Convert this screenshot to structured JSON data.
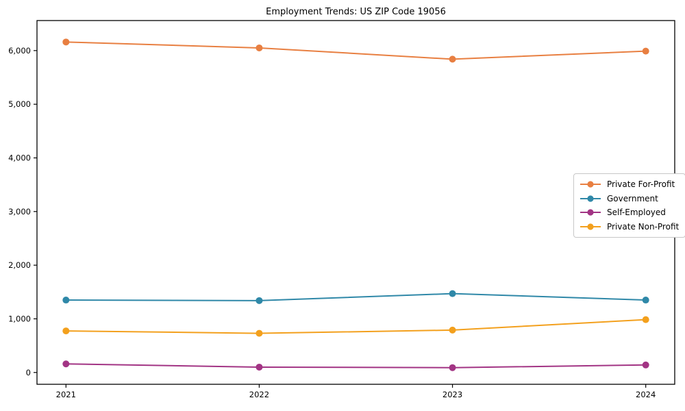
{
  "chart_data": {
    "type": "line",
    "title": "Employment Trends: US ZIP Code 19056",
    "categories": [
      2021,
      2022,
      2023,
      2024
    ],
    "series": [
      {
        "name": "Private For-Profit",
        "color": "#e87f41",
        "values": [
          6160,
          6050,
          5840,
          5990
        ]
      },
      {
        "name": "Government",
        "color": "#2f88a8",
        "values": [
          1350,
          1340,
          1470,
          1350
        ]
      },
      {
        "name": "Self-Employed",
        "color": "#a23484",
        "values": [
          160,
          100,
          90,
          140
        ]
      },
      {
        "name": "Private Non-Profit",
        "color": "#f3a01d",
        "values": [
          775,
          730,
          790,
          985
        ]
      }
    ],
    "xlabel": "",
    "ylabel": "",
    "xlim": [
      2020.85,
      2024.15
    ],
    "ylim": [
      -220,
      6560
    ],
    "yticks": [
      0,
      1000,
      2000,
      3000,
      4000,
      5000,
      6000
    ],
    "xticks": [
      2021,
      2022,
      2023,
      2024
    ],
    "grid": false,
    "legend_position": "center-right",
    "marker": "circle",
    "marker_radius": 5,
    "line_width": 2,
    "axis_color": "#000000",
    "background": "#ffffff"
  }
}
